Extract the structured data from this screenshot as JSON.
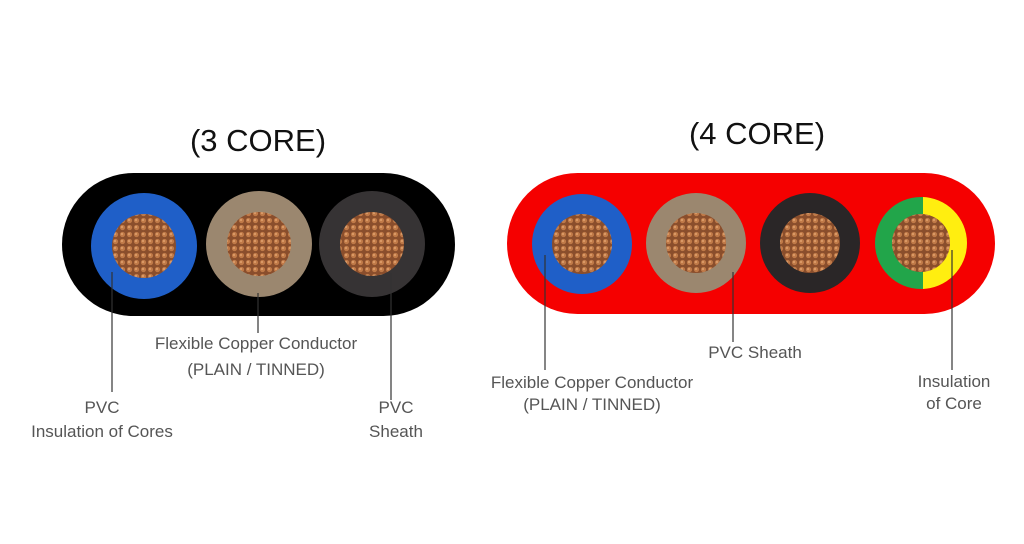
{
  "three_core": {
    "title": "(3 CORE)",
    "sheath_color": "#000000",
    "core_colors": [
      "#1f5fc8",
      "#9b876f",
      "#363334"
    ],
    "labels": {
      "conductor_line1": "Flexible Copper Conductor",
      "conductor_line2": "(PLAIN / TINNED)",
      "insulation_line1": "PVC",
      "insulation_line2": "Insulation of Cores",
      "sheath_line1": "PVC",
      "sheath_line2": "Sheath"
    }
  },
  "four_core": {
    "title": "(4 CORE)",
    "sheath_color": "#f50000",
    "core_colors": [
      "#1f5fc8",
      "#9b876f",
      "#2a2627",
      "#22a54a",
      "#ffee10"
    ],
    "labels": {
      "conductor_line1": "Flexible Copper Conductor",
      "conductor_line2": "(PLAIN / TINNED)",
      "sheath": "PVC Sheath",
      "insulation_line1": "Insulation",
      "insulation_line2": "of Core"
    }
  },
  "copper_color": "#a8643a"
}
